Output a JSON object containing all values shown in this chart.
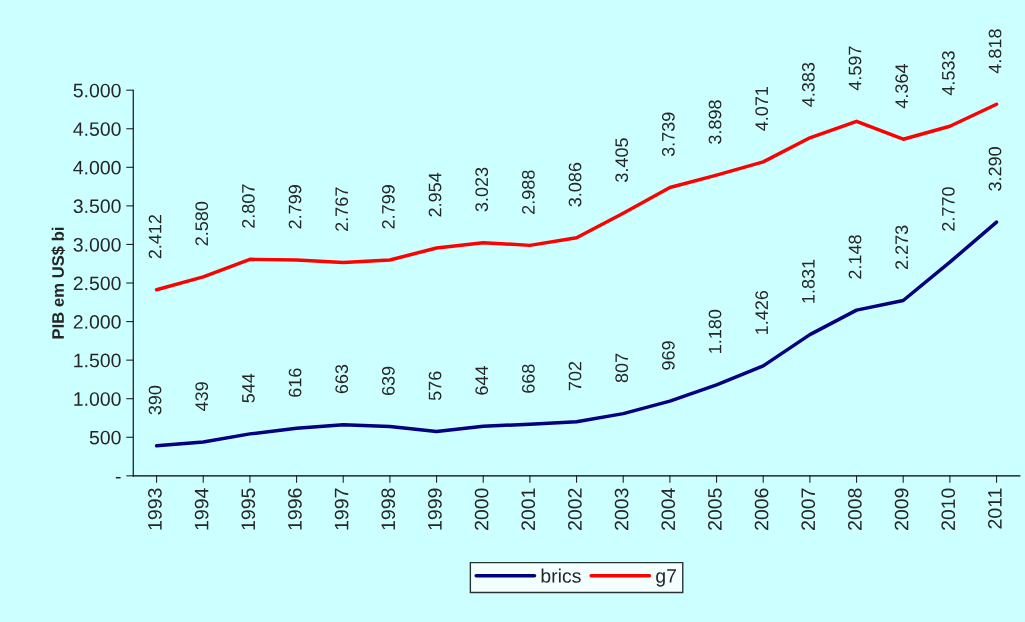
{
  "chart_data": {
    "type": "line",
    "ylabel": "PIB em US$ bi",
    "categories": [
      "1993",
      "1994",
      "1995",
      "1996",
      "1997",
      "1998",
      "1999",
      "2000",
      "2001",
      "2002",
      "2003",
      "2004",
      "2005",
      "2006",
      "2007",
      "2008",
      "2009",
      "2010",
      "2011"
    ],
    "series": [
      {
        "name": "brics",
        "color": "#000080",
        "values": [
          390,
          439,
          544,
          616,
          663,
          639,
          576,
          644,
          668,
          702,
          807,
          969,
          1180,
          1426,
          1831,
          2148,
          2273,
          2770,
          3290
        ],
        "value_labels": [
          "390",
          "439",
          "544",
          "616",
          "663",
          "639",
          "576",
          "644",
          "668",
          "702",
          "807",
          "969",
          "1.180",
          "1.426",
          "1.831",
          "2.148",
          "2.273",
          "2.770",
          "3.290"
        ]
      },
      {
        "name": "g7",
        "color": "#ff0000",
        "values": [
          2412,
          2580,
          2807,
          2799,
          2767,
          2799,
          2954,
          3023,
          2988,
          3086,
          3405,
          3739,
          3898,
          4071,
          4383,
          4597,
          4364,
          4533,
          4818
        ],
        "value_labels": [
          "2.412",
          "2.580",
          "2.807",
          "2.799",
          "2.767",
          "2.799",
          "2.954",
          "3.023",
          "2.988",
          "3.086",
          "3.405",
          "3.739",
          "3.898",
          "4.071",
          "4.383",
          "4.597",
          "4.364",
          "4.533",
          "4.818"
        ]
      }
    ],
    "ylim": [
      0,
      5000
    ],
    "yticks": [
      {
        "value": 0,
        "label": "-"
      },
      {
        "value": 500,
        "label": "500"
      },
      {
        "value": 1000,
        "label": "1.000"
      },
      {
        "value": 1500,
        "label": "1.500"
      },
      {
        "value": 2000,
        "label": "2.000"
      },
      {
        "value": 2500,
        "label": "2.500"
      },
      {
        "value": 3000,
        "label": "3.000"
      },
      {
        "value": 3500,
        "label": "3.500"
      },
      {
        "value": 4000,
        "label": "4.000"
      },
      {
        "value": 4500,
        "label": "4.500"
      },
      {
        "value": 5000,
        "label": "5.000"
      }
    ],
    "legend": "bottom",
    "grid": false,
    "marker": "none",
    "line_style": "solid"
  }
}
